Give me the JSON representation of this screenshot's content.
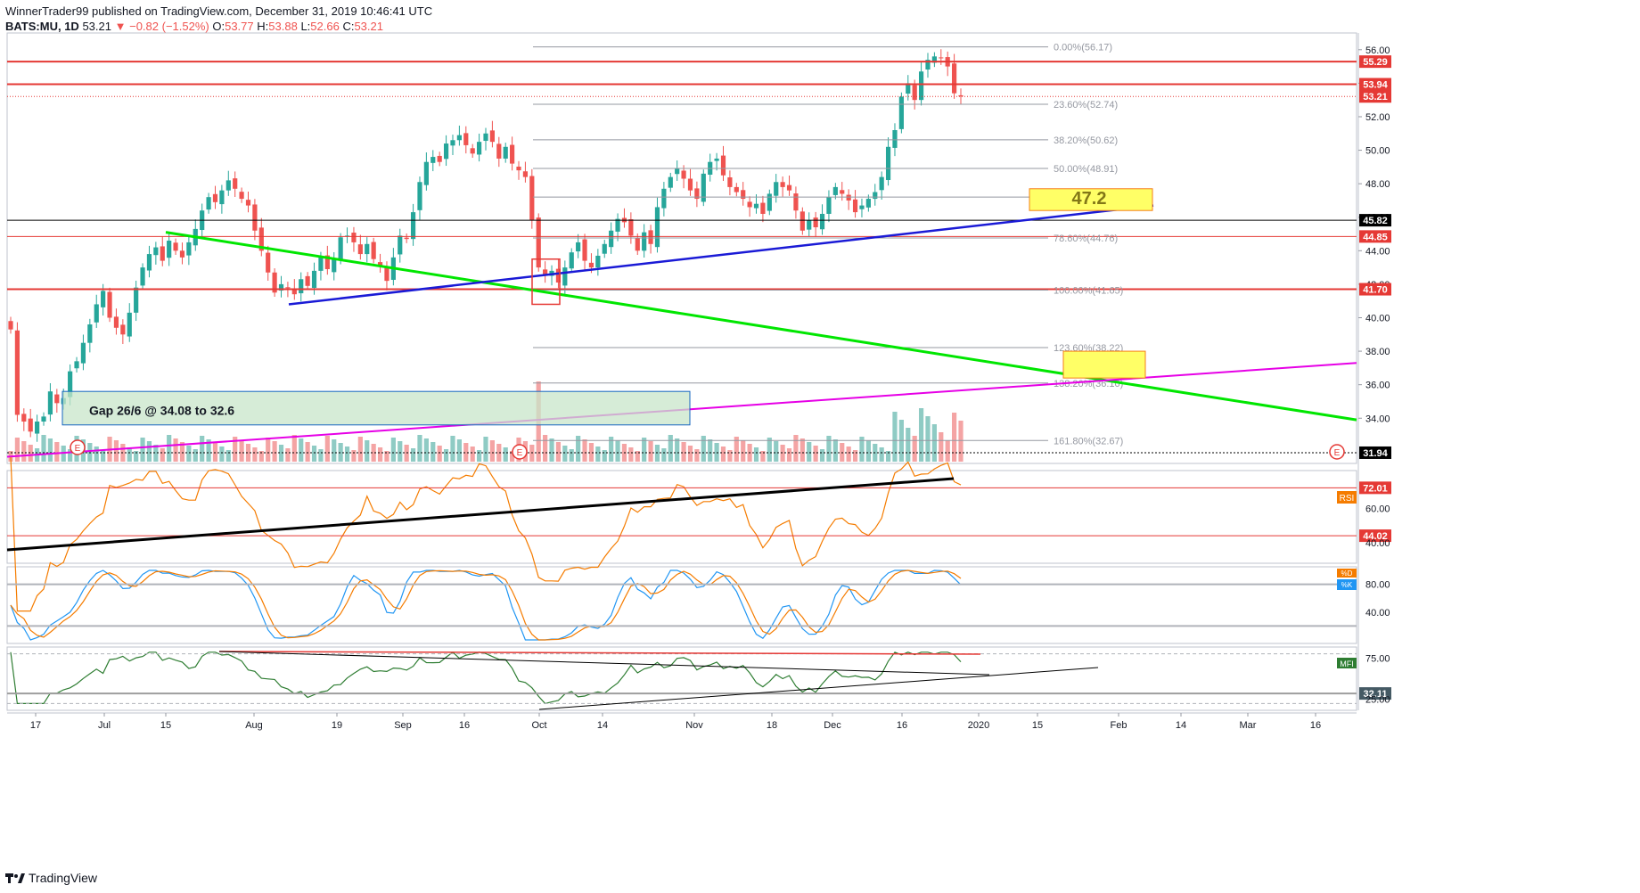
{
  "header": {
    "publisher": "WinnerTrader99 published on TradingView.com, December 31, 2019 10:46:41 UTC",
    "symbol": "BATS:MU, 1D",
    "last": "53.21",
    "change": "−0.82 (−1.52%)",
    "o_label": "O:",
    "o": "53.77",
    "h_label": "H:",
    "h": "53.88",
    "l_label": "L:",
    "l": "52.66",
    "c_label": "C:",
    "c": "53.21"
  },
  "footer": {
    "brand": "TradingView"
  },
  "colors": {
    "up": "#26a69a",
    "down": "#ef5350",
    "up_vol": "#8fcbc4",
    "down_vol": "#f4a4a4",
    "red_line": "#e53935",
    "green_trend": "#00e600",
    "blue_trend": "#1a1ad6",
    "magenta_trend": "#e600e6",
    "rsi": "#f57c00",
    "stoch_k": "#2196f3",
    "stoch_d": "#f57c00",
    "mfi": "#2e7d32"
  },
  "chart_data": {
    "type": "candlestick",
    "price_axis": {
      "ticks": [
        "56.00",
        "54.00",
        "52.00",
        "50.00",
        "48.00",
        "46.00",
        "44.00",
        "42.00",
        "40.00",
        "38.00",
        "36.00",
        "34.00"
      ],
      "range": [
        31.3,
        57.0
      ]
    },
    "x_axis": {
      "ticks": [
        "17",
        "Jul",
        "15",
        "Aug",
        "19",
        "Sep",
        "16",
        "Oct",
        "14",
        "Nov",
        "18",
        "Dec",
        "16",
        "2020",
        "15",
        "Feb",
        "14",
        "Mar",
        "16"
      ]
    },
    "price_labels": [
      {
        "value": 55.29,
        "text": "55.29",
        "style": "red"
      },
      {
        "value": 53.94,
        "text": "53.94",
        "style": "red"
      },
      {
        "value": 53.21,
        "text": "53.21",
        "style": "red"
      },
      {
        "value": 45.82,
        "text": "45.82",
        "style": "black"
      },
      {
        "value": 44.85,
        "text": "44.85",
        "style": "red"
      },
      {
        "value": 41.7,
        "text": "41.70",
        "style": "red"
      },
      {
        "value": 31.94,
        "text": "31.94",
        "style": "black"
      }
    ],
    "fib_levels": [
      {
        "value": 56.17,
        "text": "0.00%(56.17)"
      },
      {
        "value": 52.74,
        "text": "23.60%(52.74)"
      },
      {
        "value": 50.62,
        "text": "38.20%(50.62)"
      },
      {
        "value": 48.91,
        "text": "50.00%(48.91)"
      },
      {
        "value": 47.2,
        "text": "61.80%(47.20)"
      },
      {
        "value": 44.76,
        "text": "78.60%(44.76)"
      },
      {
        "value": 41.65,
        "text": "100.00%(41.65)"
      },
      {
        "value": 38.22,
        "text": "123.60%(38.22)"
      },
      {
        "value": 36.1,
        "text": "138.20%(36.10)"
      },
      {
        "value": 32.67,
        "text": "161.80%(32.67)"
      }
    ],
    "annotations": {
      "target_label": "47.2",
      "gap_label": "Gap 26/6 @ 34.08 to 32.6",
      "earnings_marker": "E"
    },
    "closes": [
      39.3,
      34.2,
      33.8,
      33.2,
      33.8,
      34.1,
      35.6,
      34.9,
      35.2,
      36.8,
      37.4,
      38.5,
      39.6,
      40.8,
      41.6,
      40.0,
      39.4,
      39.0,
      40.3,
      41.8,
      43.0,
      43.8,
      44.2,
      43.4,
      44.6,
      44.0,
      43.6,
      44.5,
      45.3,
      46.4,
      47.2,
      46.9,
      47.6,
      48.2,
      47.7,
      47.1,
      46.7,
      45.2,
      44.0,
      42.7,
      41.5,
      42.0,
      41.8,
      41.4,
      42.3,
      41.9,
      42.8,
      43.6,
      42.9,
      43.5,
      44.8,
      44.9,
      44.5,
      43.8,
      44.4,
      43.5,
      43.1,
      42.2,
      43.6,
      44.9,
      44.7,
      46.3,
      48.1,
      49.3,
      49.6,
      49.3,
      50.4,
      50.6,
      50.9,
      50.3,
      49.8,
      50.5,
      51.0,
      50.5,
      49.5,
      50.2,
      49.2,
      48.8,
      48.4,
      45.8,
      43.0,
      42.5,
      42.8,
      42.1,
      43.0,
      43.9,
      44.5,
      43.4,
      43.0,
      43.7,
      44.4,
      45.2,
      45.9,
      45.7,
      44.9,
      44.0,
      45.1,
      44.4,
      46.6,
      47.7,
      48.4,
      48.9,
      48.3,
      47.6,
      47.1,
      48.6,
      49.3,
      49.5,
      48.5,
      47.8,
      47.5,
      47.1,
      46.6,
      46.8,
      46.2,
      47.4,
      48.1,
      47.8,
      47.6,
      46.4,
      45.2,
      45.8,
      45.4,
      46.2,
      47.2,
      47.8,
      47.4,
      47.0,
      46.3,
      46.7,
      47.1,
      47.5,
      48.4,
      50.2,
      51.2,
      53.2,
      54.0,
      53.0,
      54.7,
      55.4,
      55.6,
      55.5,
      55.0,
      53.4,
      53.21
    ],
    "series": [
      {
        "name": "RSI",
        "axis_ticks": [
          "60.00",
          "40.00"
        ],
        "lines": [
          {
            "value": 72.01,
            "text": "72.01"
          },
          {
            "value": 44.02,
            "text": "44.02"
          }
        ]
      },
      {
        "name": "Stoch",
        "axis_ticks": [
          "80.00",
          "40.00"
        ],
        "labels": [
          "%D",
          "%K"
        ]
      },
      {
        "name": "MFI",
        "axis_ticks": [
          "75.00",
          "25.00"
        ],
        "lines": [
          {
            "value": 32.11,
            "text": "32.11"
          }
        ]
      }
    ]
  }
}
